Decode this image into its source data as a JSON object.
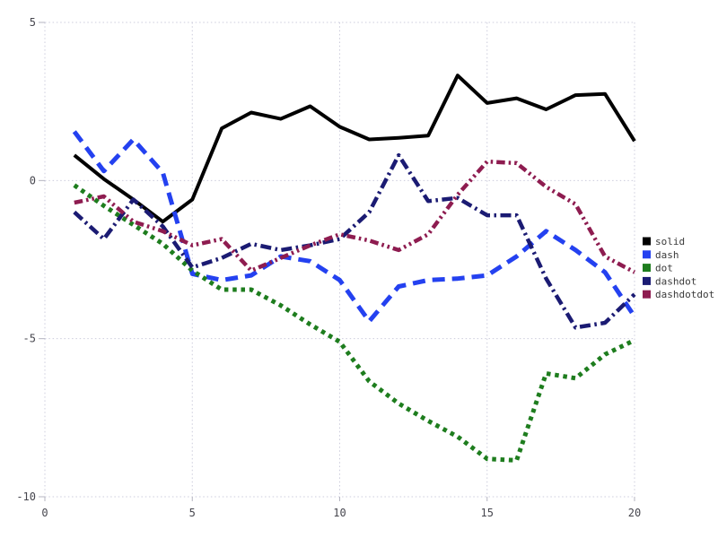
{
  "chart_data": {
    "type": "line",
    "title": "",
    "xlabel": "",
    "ylabel": "",
    "xlim": [
      0,
      20
    ],
    "ylim": [
      -10,
      5
    ],
    "xticks": [
      0,
      5,
      10,
      15,
      20
    ],
    "yticks": [
      5,
      0,
      -5,
      -10
    ],
    "xtick_labels": [
      "0",
      "5",
      "10",
      "15",
      "20"
    ],
    "ytick_labels": [
      "5",
      "0",
      "-5",
      "-10"
    ],
    "grid": true,
    "legend_position": "right",
    "x": [
      1,
      2,
      3,
      4,
      5,
      6,
      7,
      8,
      9,
      10,
      11,
      12,
      13,
      14,
      15,
      16,
      17,
      18,
      19,
      20
    ],
    "series": [
      {
        "name": "solid",
        "style": "solid",
        "color": "#000000",
        "width": 4,
        "values": [
          0.8,
          0.05,
          -0.6,
          -1.3,
          -0.6,
          1.65,
          2.15,
          1.95,
          2.35,
          1.7,
          1.3,
          1.35,
          1.42,
          3.32,
          2.45,
          2.6,
          2.25,
          2.7,
          2.74,
          1.25
        ]
      },
      {
        "name": "dash",
        "style": "dash",
        "color": "#2441f0",
        "width": 5,
        "values": [
          1.55,
          0.3,
          1.3,
          0.25,
          -2.95,
          -3.15,
          -3.0,
          -2.4,
          -2.55,
          -3.15,
          -4.45,
          -3.35,
          -3.15,
          -3.1,
          -3.0,
          -2.4,
          -1.6,
          -2.2,
          -2.9,
          -4.3
        ]
      },
      {
        "name": "dot",
        "style": "dot",
        "color": "#1e7d1e",
        "width": 5,
        "values": [
          -0.15,
          -0.8,
          -1.4,
          -2.0,
          -2.85,
          -3.45,
          -3.45,
          -3.95,
          -4.55,
          -5.1,
          -6.35,
          -7.05,
          -7.6,
          -8.1,
          -8.8,
          -8.85,
          -6.1,
          -6.25,
          -5.5,
          -5.05
        ]
      },
      {
        "name": "dashdot",
        "style": "dashdot",
        "color": "#1b1b73",
        "width": 4.5,
        "values": [
          -1.0,
          -1.85,
          -0.6,
          -1.45,
          -2.75,
          -2.45,
          -2.0,
          -2.2,
          -2.05,
          -1.85,
          -1.0,
          0.8,
          -0.65,
          -0.55,
          -1.1,
          -1.1,
          -3.1,
          -4.65,
          -4.5,
          -3.6
        ]
      },
      {
        "name": "dashdotdot",
        "style": "dashdotdot",
        "color": "#8e1c50",
        "width": 4.5,
        "values": [
          -0.7,
          -0.5,
          -1.3,
          -1.6,
          -2.05,
          -1.85,
          -2.85,
          -2.45,
          -2.05,
          -1.7,
          -1.9,
          -2.2,
          -1.7,
          -0.45,
          0.6,
          0.55,
          -0.2,
          -0.75,
          -2.4,
          -2.9
        ]
      }
    ],
    "legend_labels": [
      "solid",
      "dash",
      "dot",
      "dashdot",
      "dashdotdot"
    ]
  },
  "style": {
    "grid_color": "#ccccdc",
    "tick_mark_color": "#b4b4c0",
    "tick_label_color": "#46464e",
    "legend_text_color": "#3a3a3a",
    "background": "#ffffff"
  }
}
